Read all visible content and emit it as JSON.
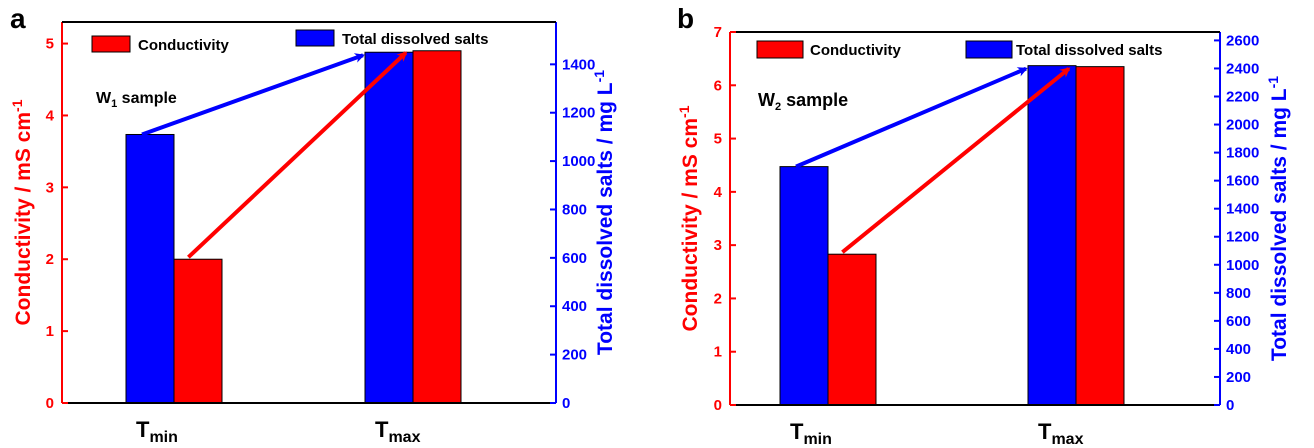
{
  "chart_data": [
    {
      "type": "bar",
      "panel_label": "a",
      "sample_label": {
        "prefix": "W",
        "subscript": "1",
        "suffix": " sample"
      },
      "categories": [
        {
          "main": "T",
          "sub": "min"
        },
        {
          "main": "T",
          "sub": "max"
        }
      ],
      "series": [
        {
          "name": "Total dissolved salts",
          "axis": "right",
          "color": "#0000ff",
          "values": [
            1110,
            1450
          ]
        },
        {
          "name": "Conductivity",
          "axis": "left",
          "color": "#ff0000",
          "values": [
            2.0,
            4.9
          ]
        }
      ],
      "left_axis": {
        "label": "Conductivity / mS cm",
        "label_sup": "-1",
        "ylim": [
          0,
          5.3
        ],
        "ticks": [
          0,
          1,
          2,
          3,
          4,
          5
        ],
        "color": "#ff0000"
      },
      "right_axis": {
        "label": "Total dissolved salts / mg L",
        "label_sup": "-1",
        "ylim": [
          0,
          1575
        ],
        "ticks": [
          0,
          200,
          400,
          600,
          800,
          1000,
          1200,
          1400
        ],
        "color": "#0000ff"
      },
      "legend": {
        "left_entry": "Conductivity",
        "right_entry": "Total dissolved salts"
      },
      "arrows": [
        {
          "series": "Total dissolved salts",
          "color": "#0000ff"
        },
        {
          "series": "Conductivity",
          "color": "#ff0000"
        }
      ]
    },
    {
      "type": "bar",
      "panel_label": "b",
      "sample_label": {
        "prefix": "W",
        "subscript": "2",
        "suffix": " sample"
      },
      "categories": [
        {
          "main": "T",
          "sub": "min"
        },
        {
          "main": "T",
          "sub": "max"
        }
      ],
      "series": [
        {
          "name": "Total dissolved salts",
          "axis": "right",
          "color": "#0000ff",
          "values": [
            1700,
            2420
          ]
        },
        {
          "name": "Conductivity",
          "axis": "left",
          "color": "#ff0000",
          "values": [
            2.83,
            6.35
          ]
        }
      ],
      "left_axis": {
        "label": "Conductivity / mS cm",
        "label_sup": "-1",
        "ylim": [
          0,
          7
        ],
        "ticks": [
          0,
          1,
          2,
          3,
          4,
          5,
          6,
          7
        ],
        "color": "#ff0000"
      },
      "right_axis": {
        "label": "Total dissolved salts / mg L",
        "label_sup": "-1",
        "ylim": [
          0,
          2660
        ],
        "ticks": [
          0,
          200,
          400,
          600,
          800,
          1000,
          1200,
          1400,
          1600,
          1800,
          2000,
          2200,
          2400,
          2600
        ],
        "color": "#0000ff"
      },
      "legend": {
        "left_entry": "Conductivity",
        "right_entry": "Total dissolved salts"
      },
      "arrows": [
        {
          "series": "Total dissolved salts",
          "color": "#0000ff"
        },
        {
          "series": "Conductivity",
          "color": "#ff0000"
        }
      ]
    }
  ]
}
